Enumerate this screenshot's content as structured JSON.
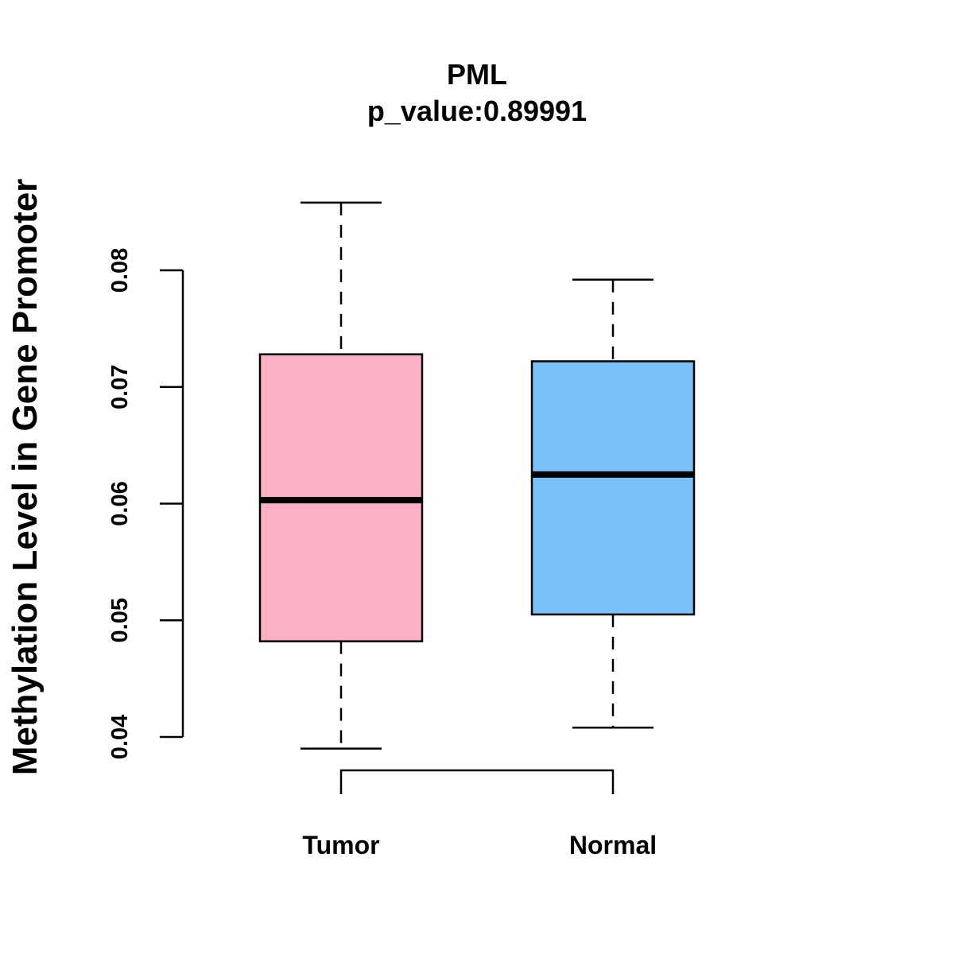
{
  "chart_data": {
    "type": "boxplot",
    "title": "PML",
    "subtitle": "p_value:0.89991",
    "xlabel": "",
    "ylabel": "Methylation Level in Gene Promoter",
    "ylim": [
      0.04,
      0.08
    ],
    "yticks": [
      0.04,
      0.05,
      0.06,
      0.07,
      0.08
    ],
    "ytick_labels": [
      "0.04",
      "0.05",
      "0.06",
      "0.07",
      "0.08"
    ],
    "grid": false,
    "categories": [
      "Tumor",
      "Normal"
    ],
    "series": [
      {
        "name": "Tumor",
        "color": "#FBB1C3",
        "min": 0.039,
        "q1": 0.0482,
        "median": 0.0603,
        "q3": 0.0728,
        "max": 0.0858
      },
      {
        "name": "Normal",
        "color": "#79C1F8",
        "min": 0.0408,
        "q1": 0.0505,
        "median": 0.0625,
        "q3": 0.0722,
        "max": 0.0792
      }
    ],
    "comparison_bracket": [
      "Tumor",
      "Normal"
    ]
  }
}
